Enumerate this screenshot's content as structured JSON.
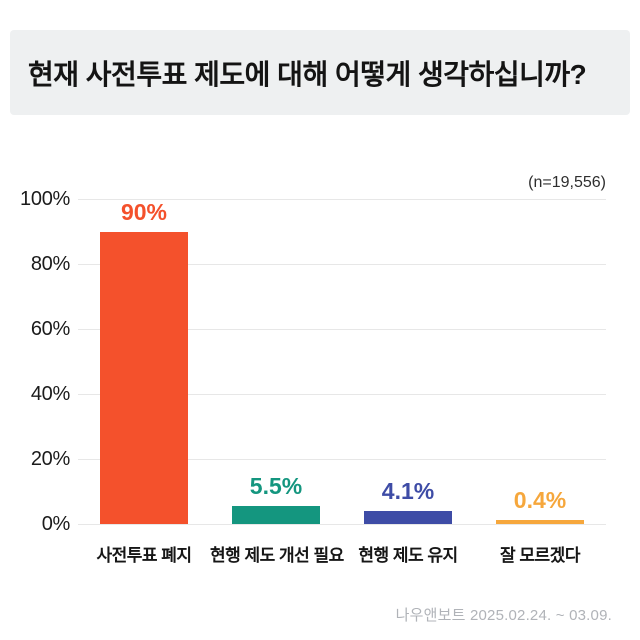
{
  "title": "현재 사전투표 제도에 대해 어떻게 생각하십니까?",
  "sample_label": "(n=19,556)",
  "footer": "나우앤보트 2025.02.24. ~ 03.09.",
  "colors": {
    "title_bg": "#eef0f1",
    "grid": "#e7e7e7",
    "axis_text": "#1b1b1b",
    "footer_text": "#b0b3b8"
  },
  "chart_data": {
    "type": "bar",
    "title": "현재 사전투표 제도에 대해 어떻게 생각하십니까?",
    "categories": [
      "사전투표 폐지",
      "현행 제도 개선 필요",
      "현행 제도 유지",
      "잘 모르겠다"
    ],
    "values": [
      90,
      5.5,
      4.1,
      0.4
    ],
    "value_labels": [
      "90%",
      "5.5%",
      "4.1%",
      "0.4%"
    ],
    "bar_colors": [
      "#f4512c",
      "#14967f",
      "#3e4ca6",
      "#f6a73c"
    ],
    "xlabel": "",
    "ylabel": "",
    "ylim": [
      0,
      100
    ],
    "yticks": [
      0,
      20,
      40,
      60,
      80,
      100
    ],
    "ytick_labels": [
      "0%",
      "20%",
      "40%",
      "60%",
      "80%",
      "100%"
    ],
    "grid": true,
    "legend": "none",
    "annotation": "(n=19,556)",
    "source_note": "나우앤보트 2025.02.24. ~ 03.09."
  }
}
